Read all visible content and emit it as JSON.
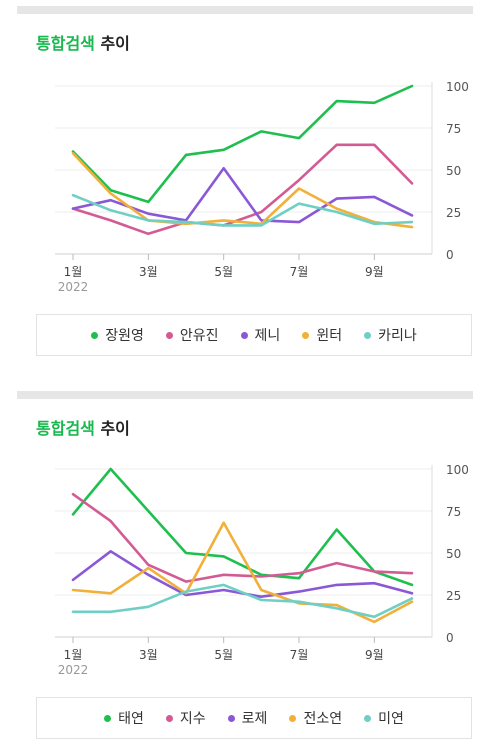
{
  "charts": [
    {
      "title_highlight": "통합검색",
      "title_rest": " 추이",
      "chart_data": {
        "type": "line",
        "x": [
          1,
          2,
          3,
          4,
          5,
          6,
          7,
          8,
          9,
          10
        ],
        "x_ticks": [
          {
            "x": 1,
            "label": "1월"
          },
          {
            "x": 3,
            "label": "3월"
          },
          {
            "x": 5,
            "label": "5월"
          },
          {
            "x": 7,
            "label": "7월"
          },
          {
            "x": 9,
            "label": "9월"
          }
        ],
        "x_sublabel": "2022",
        "y_ticks": [
          0,
          25,
          50,
          75,
          100
        ],
        "ylim": [
          0,
          100
        ],
        "grid": "horizontal",
        "legend_position": "bottom",
        "series": [
          {
            "name": "장원영",
            "color": "#1fbf4f",
            "values": [
              61,
              38,
              31,
              59,
              62,
              73,
              69,
              91,
              90,
              100
            ]
          },
          {
            "name": "안유진",
            "color": "#d35b94",
            "values": [
              27,
              20,
              12,
              19,
              17,
              25,
              44,
              65,
              65,
              42
            ]
          },
          {
            "name": "제니",
            "color": "#8a58d6",
            "values": [
              27,
              32,
              24,
              20,
              51,
              20,
              19,
              33,
              34,
              23
            ]
          },
          {
            "name": "윈터",
            "color": "#f0b03a",
            "values": [
              60,
              36,
              20,
              18,
              20,
              18,
              39,
              27,
              19,
              16
            ]
          },
          {
            "name": "카리나",
            "color": "#6fcfc5",
            "values": [
              35,
              26,
              20,
              19,
              17,
              17,
              30,
              25,
              18,
              19
            ]
          }
        ]
      }
    },
    {
      "title_highlight": "통합검색",
      "title_rest": " 추이",
      "chart_data": {
        "type": "line",
        "x": [
          1,
          2,
          3,
          4,
          5,
          6,
          7,
          8,
          9,
          10
        ],
        "x_ticks": [
          {
            "x": 1,
            "label": "1월"
          },
          {
            "x": 3,
            "label": "3월"
          },
          {
            "x": 5,
            "label": "5월"
          },
          {
            "x": 7,
            "label": "7월"
          },
          {
            "x": 9,
            "label": "9월"
          }
        ],
        "x_sublabel": "2022",
        "y_ticks": [
          0,
          25,
          50,
          75,
          100
        ],
        "ylim": [
          0,
          100
        ],
        "grid": "horizontal",
        "legend_position": "bottom",
        "series": [
          {
            "name": "태연",
            "color": "#1fbf4f",
            "values": [
              73,
              100,
              75,
              50,
              48,
              37,
              35,
              64,
              39,
              31
            ]
          },
          {
            "name": "지수",
            "color": "#d35b94",
            "values": [
              85,
              69,
              43,
              33,
              37,
              36,
              38,
              44,
              39,
              38
            ]
          },
          {
            "name": "로제",
            "color": "#8a58d6",
            "values": [
              34,
              51,
              37,
              25,
              28,
              24,
              27,
              31,
              32,
              26
            ]
          },
          {
            "name": "전소연",
            "color": "#f0b03a",
            "values": [
              28,
              26,
              41,
              26,
              68,
              28,
              20,
              19,
              9,
              21
            ]
          },
          {
            "name": "미연",
            "color": "#6fcfc5",
            "values": [
              15,
              15,
              18,
              27,
              31,
              22,
              21,
              17,
              12,
              23
            ]
          }
        ]
      }
    }
  ]
}
